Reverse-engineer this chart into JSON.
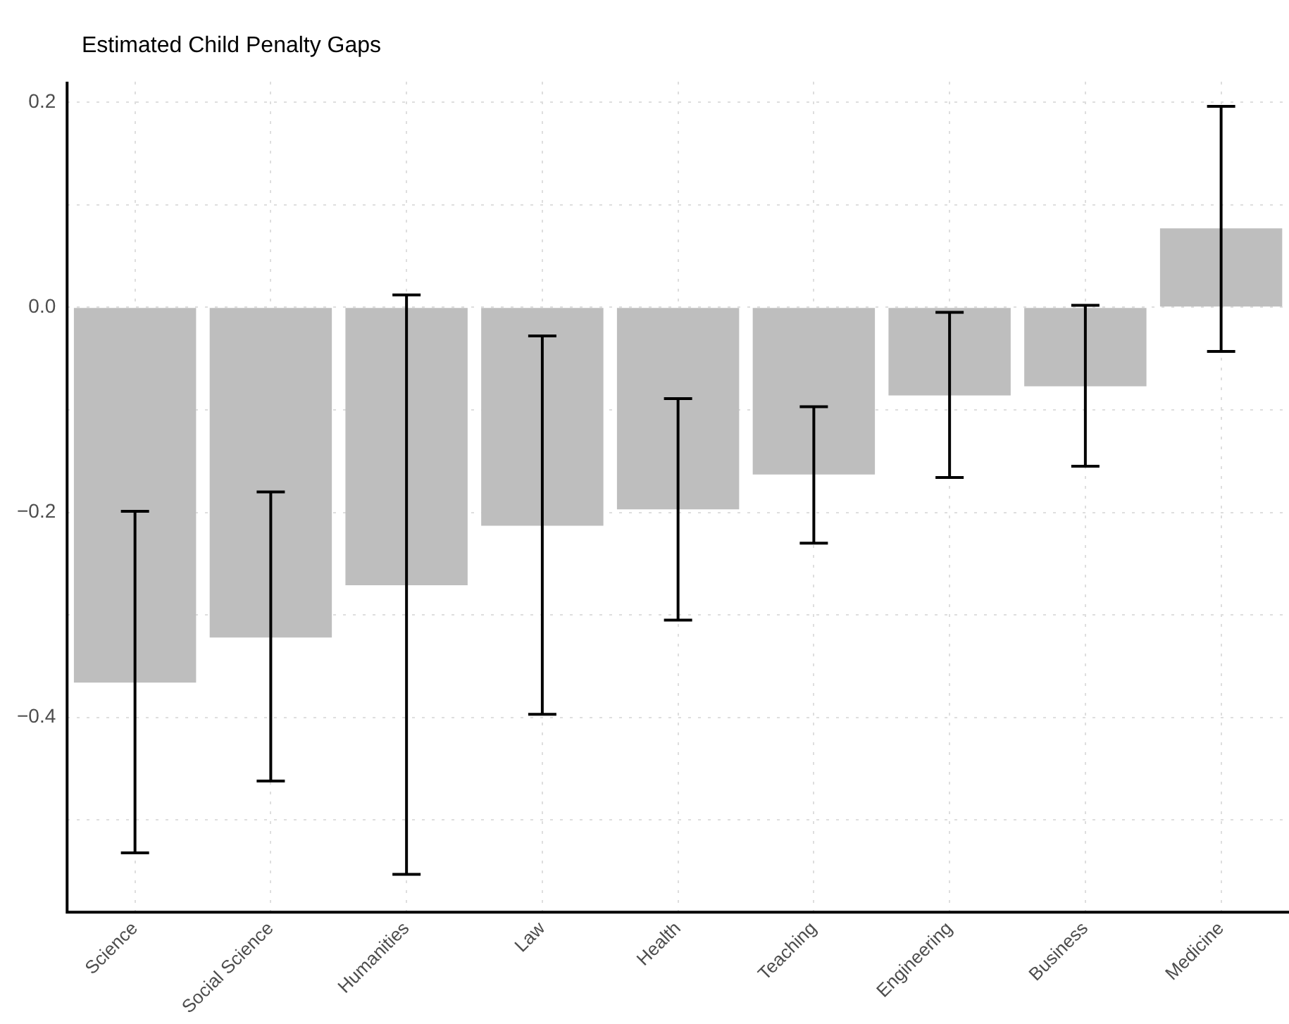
{
  "chart_data": {
    "type": "bar",
    "title": "Estimated Child Penalty Gaps",
    "categories": [
      "Science",
      "Social Science",
      "Humanities",
      "Law",
      "Health",
      "Teaching",
      "Engineering",
      "Business",
      "Medicine"
    ],
    "values": [
      -0.366,
      -0.322,
      -0.271,
      -0.213,
      -0.197,
      -0.163,
      -0.086,
      -0.077,
      0.077
    ],
    "errors": [
      [
        -0.532,
        -0.199
      ],
      [
        -0.462,
        -0.18
      ],
      [
        -0.553,
        0.012
      ],
      [
        -0.397,
        -0.028
      ],
      [
        -0.305,
        -0.089
      ],
      [
        -0.23,
        -0.097
      ],
      [
        -0.166,
        -0.005
      ],
      [
        -0.155,
        0.002
      ],
      [
        -0.043,
        0.196
      ]
    ],
    "color": "#bebebe",
    "ylim": [
      -0.59,
      0.22
    ],
    "yticks": [
      {
        "value": -0.5,
        "label": null
      },
      {
        "value": -0.4,
        "label": "−0.4"
      },
      {
        "value": -0.3,
        "label": null
      },
      {
        "value": -0.2,
        "label": "−0.2"
      },
      {
        "value": -0.1,
        "label": null
      },
      {
        "value": 0,
        "label": "0.0"
      },
      {
        "value": 0.1,
        "label": null
      },
      {
        "value": 0.2,
        "label": "0.2"
      }
    ],
    "grid": true,
    "legend": false
  }
}
